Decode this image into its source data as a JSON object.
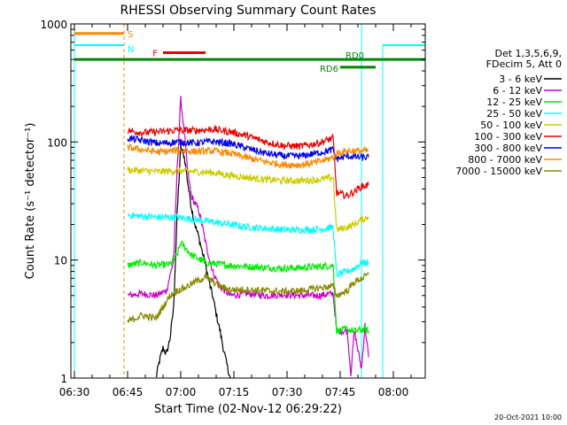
{
  "chart_data": {
    "type": "line",
    "title": "RHESSI Observing Summary Count Rates",
    "xlabel": "Start Time (02-Nov-12 06:29:22)",
    "ylabel": "Count Rate (s⁻¹ detector⁻¹)",
    "yscale": "log",
    "ylim": [
      1,
      1000
    ],
    "xlim_minutes": [
      0,
      100
    ],
    "x_ticks": [
      {
        "min": 1,
        "label": "06:30"
      },
      {
        "min": 16,
        "label": "06:45"
      },
      {
        "min": 31,
        "label": "07:00"
      },
      {
        "min": 46,
        "label": "07:15"
      },
      {
        "min": 61,
        "label": "07:30"
      },
      {
        "min": 76,
        "label": "07:45"
      },
      {
        "min": 91,
        "label": "08:00"
      }
    ],
    "y_ticks": [
      {
        "value": 1,
        "label": "1"
      },
      {
        "value": 10,
        "label": "10"
      },
      {
        "value": 100,
        "label": "100"
      },
      {
        "value": 1000,
        "label": "1000"
      }
    ],
    "legend": {
      "placement": "right",
      "header": [
        "Det 1,3,5,6,9,",
        "FDecim 5, Att 0"
      ]
    },
    "series": [
      {
        "name": "3 - 6 keV",
        "color": "#000000",
        "points": [
          [
            24,
            1
          ],
          [
            25,
            1.4
          ],
          [
            26,
            1.8
          ],
          [
            27,
            1.6
          ],
          [
            28,
            2.2
          ],
          [
            29,
            4
          ],
          [
            30,
            25
          ],
          [
            31,
            90
          ],
          [
            32,
            75
          ],
          [
            33,
            45
          ],
          [
            34,
            28
          ],
          [
            35,
            20
          ],
          [
            36,
            16
          ],
          [
            37,
            12
          ],
          [
            38,
            9
          ],
          [
            39,
            6.5
          ],
          [
            40,
            5
          ],
          [
            41,
            3.5
          ],
          [
            42,
            2.6
          ],
          [
            43,
            1.8
          ],
          [
            44,
            1.3
          ],
          [
            45,
            1
          ]
        ]
      },
      {
        "name": "6 - 12 keV",
        "color": "#cc00cc",
        "points": [
          [
            16,
            5
          ],
          [
            20,
            5.2
          ],
          [
            24,
            5
          ],
          [
            27,
            5.5
          ],
          [
            29,
            10
          ],
          [
            30,
            60
          ],
          [
            31,
            230
          ],
          [
            32,
            120
          ],
          [
            33,
            55
          ],
          [
            34,
            35
          ],
          [
            35,
            30
          ],
          [
            36,
            27
          ],
          [
            37,
            20
          ],
          [
            38,
            14
          ],
          [
            40,
            8
          ],
          [
            42,
            6
          ],
          [
            45,
            5
          ],
          [
            50,
            5.2
          ],
          [
            55,
            5
          ],
          [
            60,
            5.1
          ],
          [
            65,
            5
          ],
          [
            70,
            5
          ],
          [
            74,
            5.2
          ],
          [
            75,
            2.5
          ],
          [
            78,
            2.5
          ],
          [
            79,
            1.1
          ],
          [
            80,
            2.5
          ],
          [
            82,
            1.2
          ],
          [
            83,
            2.8
          ],
          [
            84,
            1.5
          ]
        ]
      },
      {
        "name": "12 - 25 keV",
        "color": "#00ee00",
        "points": [
          [
            16,
            9
          ],
          [
            20,
            9.5
          ],
          [
            24,
            9
          ],
          [
            28,
            9.2
          ],
          [
            30,
            11
          ],
          [
            31,
            14
          ],
          [
            32,
            13
          ],
          [
            34,
            11
          ],
          [
            38,
            9.5
          ],
          [
            45,
            9
          ],
          [
            50,
            8.8
          ],
          [
            55,
            8.6
          ],
          [
            60,
            8.5
          ],
          [
            65,
            8.6
          ],
          [
            70,
            8.8
          ],
          [
            74,
            9
          ],
          [
            75,
            2.5
          ],
          [
            78,
            2.6
          ],
          [
            80,
            2.5
          ],
          [
            83,
            2.6
          ],
          [
            84,
            2.5
          ]
        ]
      },
      {
        "name": "25 - 50 keV",
        "color": "#00ffff",
        "points": [
          [
            16,
            24
          ],
          [
            20,
            23.5
          ],
          [
            25,
            23
          ],
          [
            30,
            23
          ],
          [
            35,
            22
          ],
          [
            40,
            21
          ],
          [
            45,
            20
          ],
          [
            50,
            19
          ],
          [
            55,
            18.5
          ],
          [
            60,
            18
          ],
          [
            65,
            18
          ],
          [
            70,
            18.2
          ],
          [
            74,
            19
          ],
          [
            75,
            7.5
          ],
          [
            78,
            8
          ],
          [
            80,
            8.5
          ],
          [
            82,
            9.5
          ],
          [
            84,
            9.5
          ]
        ]
      },
      {
        "name": "50 - 100 keV",
        "color": "#cccc00",
        "points": [
          [
            16,
            58
          ],
          [
            20,
            57
          ],
          [
            25,
            56
          ],
          [
            30,
            57
          ],
          [
            35,
            56
          ],
          [
            40,
            55
          ],
          [
            45,
            52
          ],
          [
            50,
            50
          ],
          [
            55,
            48
          ],
          [
            60,
            47
          ],
          [
            65,
            47
          ],
          [
            70,
            48
          ],
          [
            74,
            50
          ],
          [
            75,
            18
          ],
          [
            78,
            19
          ],
          [
            80,
            20
          ],
          [
            82,
            22
          ],
          [
            84,
            23
          ]
        ]
      },
      {
        "name": "100 - 300 keV",
        "color": "#ee0000",
        "points": [
          [
            16,
            125
          ],
          [
            20,
            120
          ],
          [
            25,
            122
          ],
          [
            30,
            126
          ],
          [
            35,
            125
          ],
          [
            40,
            128
          ],
          [
            45,
            122
          ],
          [
            50,
            112
          ],
          [
            55,
            100
          ],
          [
            60,
            93
          ],
          [
            65,
            92
          ],
          [
            70,
            98
          ],
          [
            74,
            108
          ],
          [
            75,
            37
          ],
          [
            78,
            35
          ],
          [
            80,
            38
          ],
          [
            82,
            42
          ],
          [
            84,
            43
          ]
        ]
      },
      {
        "name": "300 - 800 keV",
        "color": "#0000ee",
        "points": [
          [
            16,
            108
          ],
          [
            20,
            103
          ],
          [
            25,
            97
          ],
          [
            30,
            100
          ],
          [
            35,
            98
          ],
          [
            40,
            101
          ],
          [
            45,
            97
          ],
          [
            50,
            88
          ],
          [
            55,
            80
          ],
          [
            60,
            76
          ],
          [
            65,
            76
          ],
          [
            70,
            81
          ],
          [
            74,
            86
          ],
          [
            75,
            72
          ],
          [
            78,
            76
          ],
          [
            80,
            75
          ],
          [
            82,
            74
          ],
          [
            84,
            74
          ]
        ]
      },
      {
        "name": "800 - 7000 keV",
        "color": "#ff8800",
        "points": [
          [
            16,
            90
          ],
          [
            20,
            86
          ],
          [
            25,
            82
          ],
          [
            30,
            85
          ],
          [
            35,
            83
          ],
          [
            40,
            84
          ],
          [
            45,
            80
          ],
          [
            50,
            73
          ],
          [
            55,
            68
          ],
          [
            60,
            64
          ],
          [
            65,
            64
          ],
          [
            70,
            68
          ],
          [
            74,
            74
          ],
          [
            75,
            80
          ],
          [
            78,
            84
          ],
          [
            80,
            84
          ],
          [
            82,
            84
          ],
          [
            84,
            84
          ]
        ]
      },
      {
        "name": "7000 - 15000 keV",
        "color": "#888800",
        "points": [
          [
            16,
            3
          ],
          [
            20,
            3.4
          ],
          [
            24,
            3.2
          ],
          [
            26,
            4
          ],
          [
            28,
            5
          ],
          [
            30,
            5.5
          ],
          [
            32,
            5.8
          ],
          [
            35,
            6.5
          ],
          [
            38,
            7.2
          ],
          [
            40,
            6.6
          ],
          [
            42,
            6
          ],
          [
            45,
            5.6
          ],
          [
            50,
            5.6
          ],
          [
            55,
            5.5
          ],
          [
            60,
            5.4
          ],
          [
            65,
            5.5
          ],
          [
            70,
            5.8
          ],
          [
            74,
            6
          ],
          [
            75,
            5
          ],
          [
            78,
            5.5
          ],
          [
            80,
            6.5
          ],
          [
            82,
            7
          ],
          [
            84,
            7.5
          ]
        ]
      }
    ],
    "state_bars": [
      {
        "label": "S",
        "color": "#ff8800",
        "x": [
          1,
          15
        ],
        "level": 830
      },
      {
        "label": "F",
        "color": "#ee0000",
        "x": [
          26,
          38
        ],
        "level": 570
      },
      {
        "label": "RD0",
        "color": "#008800",
        "x": [
          1,
          100
        ],
        "level": 500
      },
      {
        "label": "RD6",
        "color": "#008800",
        "x": [
          76,
          86
        ],
        "level": 430
      }
    ],
    "spacecraft_night": {
      "label": "N",
      "color": "#00ffff",
      "top_level": 660,
      "intervals": [
        [
          1,
          15
        ],
        [
          88,
          100
        ]
      ]
    },
    "dashed_markers": [
      {
        "x": 15,
        "color": "#ff8800"
      },
      {
        "x": 100,
        "color": "#00ffff"
      }
    ],
    "solid_markers": [
      {
        "x": 82,
        "color": "#00ffff"
      }
    ],
    "timestamp": "20-Oct-2021 10:00"
  }
}
